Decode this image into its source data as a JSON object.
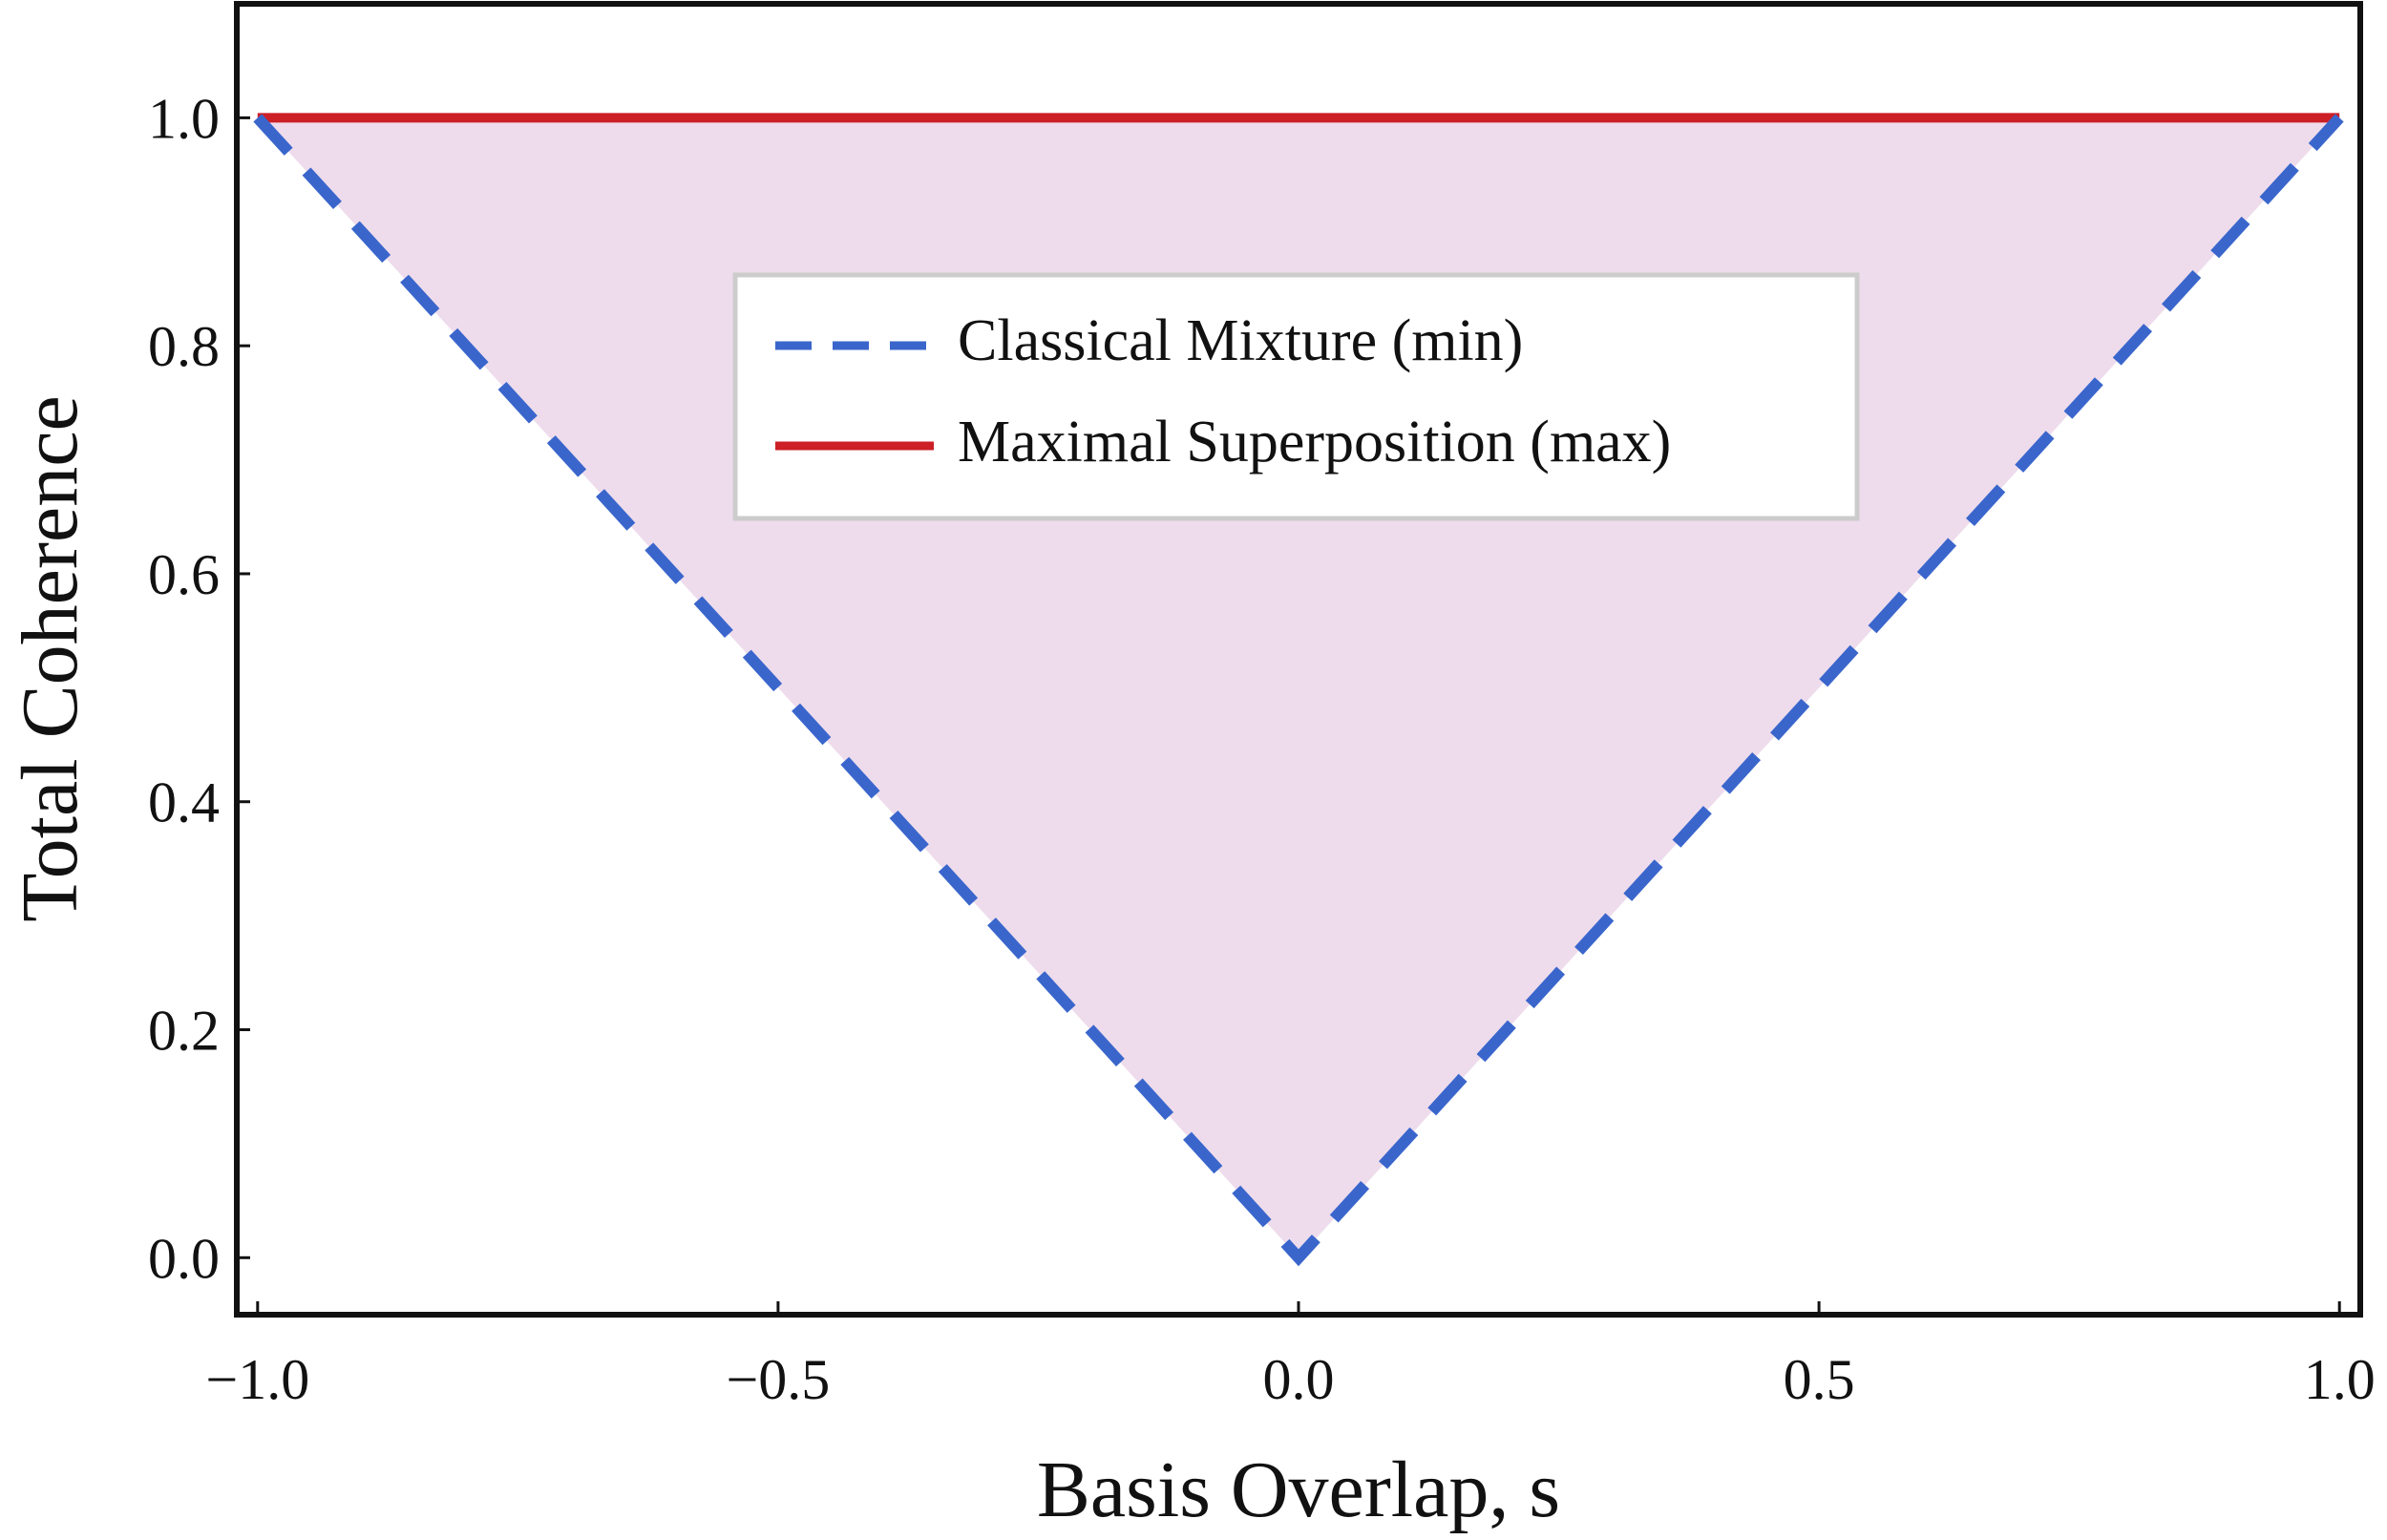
{
  "chart_data": {
    "type": "line",
    "xlabel": "Basis Overlap, s",
    "ylabel": "Total Coherence",
    "xlim": [
      -1.02,
      1.02
    ],
    "ylim": [
      -0.05,
      1.1
    ],
    "x_ticks": [
      {
        "value": -1.0,
        "label": "−1.0"
      },
      {
        "value": -0.5,
        "label": "−0.5"
      },
      {
        "value": 0.0,
        "label": "0.0"
      },
      {
        "value": 0.5,
        "label": "0.5"
      },
      {
        "value": 1.0,
        "label": "1.0"
      }
    ],
    "y_ticks": [
      {
        "value": 0.0,
        "label": "0.0"
      },
      {
        "value": 0.2,
        "label": "0.2"
      },
      {
        "value": 0.4,
        "label": "0.4"
      },
      {
        "value": 0.6,
        "label": "0.6"
      },
      {
        "value": 0.8,
        "label": "0.8"
      },
      {
        "value": 1.0,
        "label": "1.0"
      }
    ],
    "grid": false,
    "legend_position": "upper-center",
    "fill_between": {
      "lower_series": 0,
      "upper_series": 1,
      "color": "#eedcec"
    },
    "series": [
      {
        "name": "Classical Mixture (min)",
        "style": "dashed",
        "color": "#3a66cc",
        "x": [
          -1.0,
          0.0,
          1.0
        ],
        "y": [
          1.0,
          0.0,
          1.0
        ]
      },
      {
        "name": "Maximal Superposition (max)",
        "style": "solid",
        "color": "#cc1f26",
        "x": [
          -1.0,
          1.0
        ],
        "y": [
          1.0,
          1.0
        ]
      }
    ]
  }
}
